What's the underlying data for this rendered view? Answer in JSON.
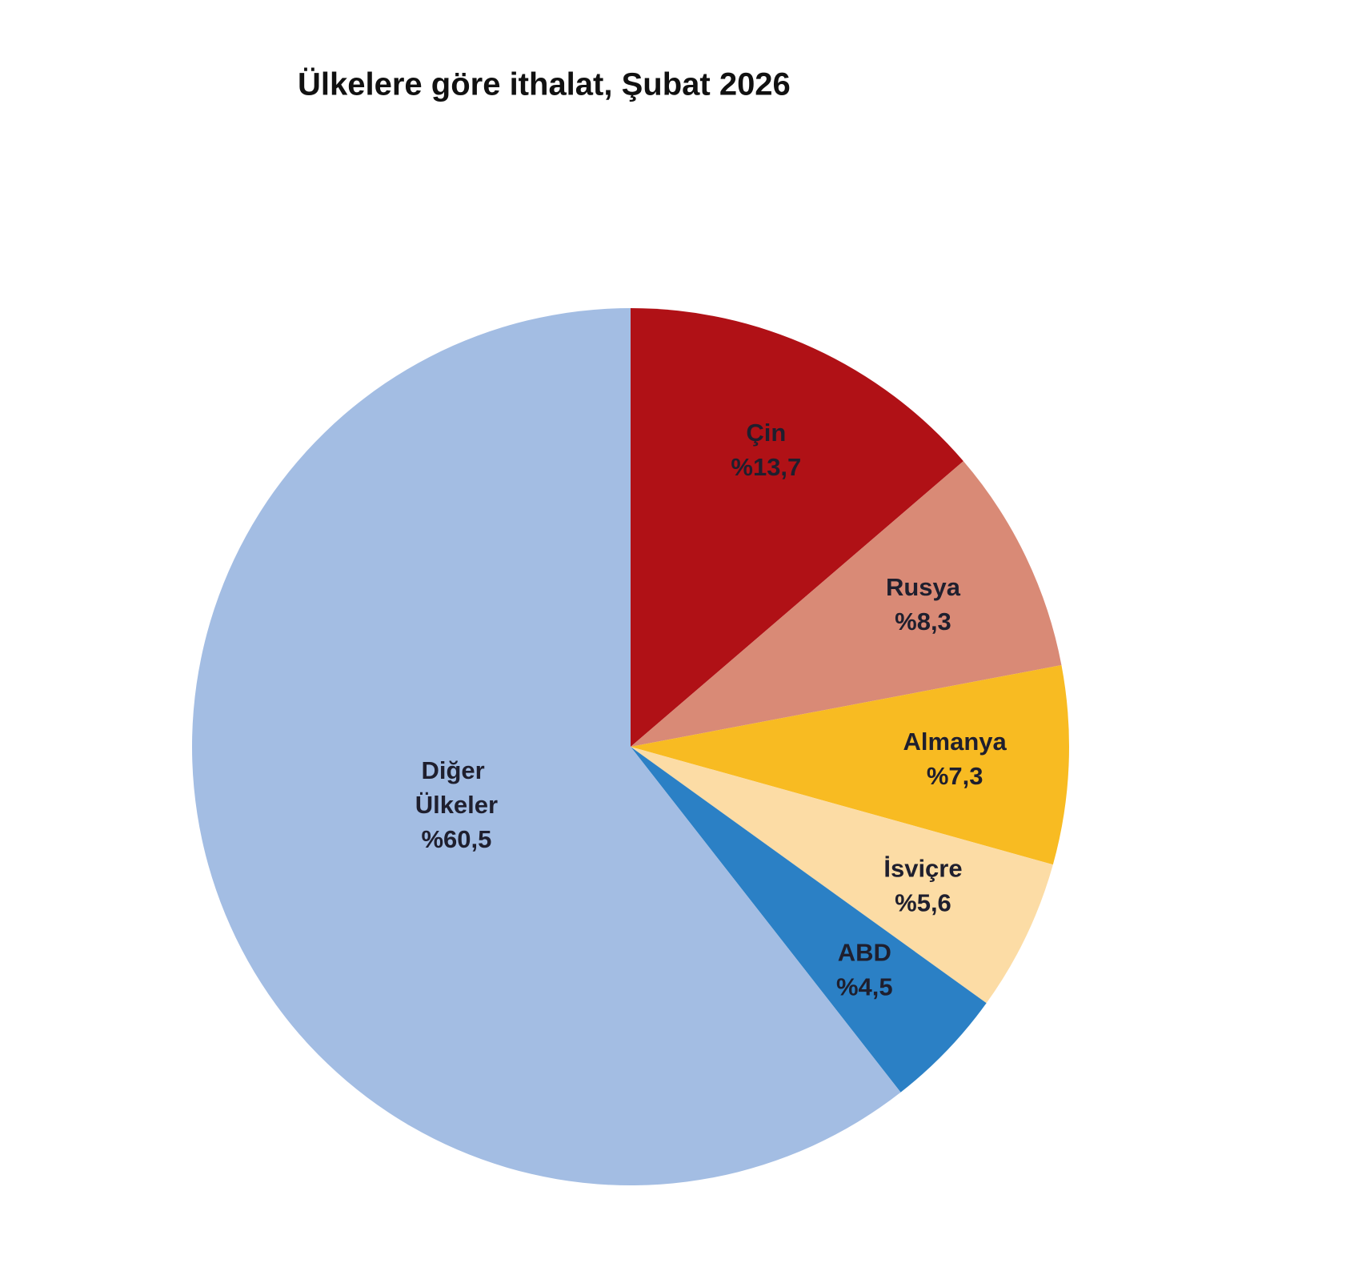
{
  "chart_data": {
    "type": "pie",
    "title": "Ülkelere göre ithalat, Şubat 2026",
    "categories": [
      "Çin",
      "Rusya",
      "Almanya",
      "İsviçre",
      "ABD",
      "Diğer Ülkeler"
    ],
    "values": [
      13.7,
      8.3,
      7.3,
      5.6,
      4.5,
      60.5
    ],
    "value_labels": [
      "%13,7",
      "%8,3",
      "%7,3",
      "%5,6",
      "%4,5",
      "%60,5"
    ],
    "colors": [
      "#b01116",
      "#d98a76",
      "#f8bb22",
      "#fcdca5",
      "#2b80c5",
      "#a3bde3"
    ]
  }
}
